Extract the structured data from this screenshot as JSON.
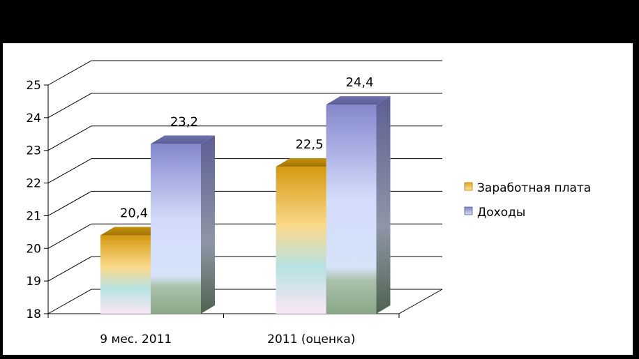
{
  "chart_data": {
    "type": "bar",
    "categories": [
      "9 мес. 2011",
      "2011 (оценка)"
    ],
    "series": [
      {
        "name": "Заработная плата",
        "values": [
          20.4,
          22.5
        ],
        "labels": [
          "20,4",
          "22,5"
        ],
        "color": "#d9a21a"
      },
      {
        "name": "Доходы",
        "values": [
          23.2,
          24.4
        ],
        "labels": [
          "23,2",
          "24,4"
        ],
        "color": "#8a8fd0"
      }
    ],
    "yticks": [
      "18",
      "19",
      "20",
      "21",
      "22",
      "23",
      "24",
      "25"
    ],
    "ylim": [
      18,
      25
    ],
    "grid": true,
    "legend": "right",
    "style": "3d-column"
  }
}
